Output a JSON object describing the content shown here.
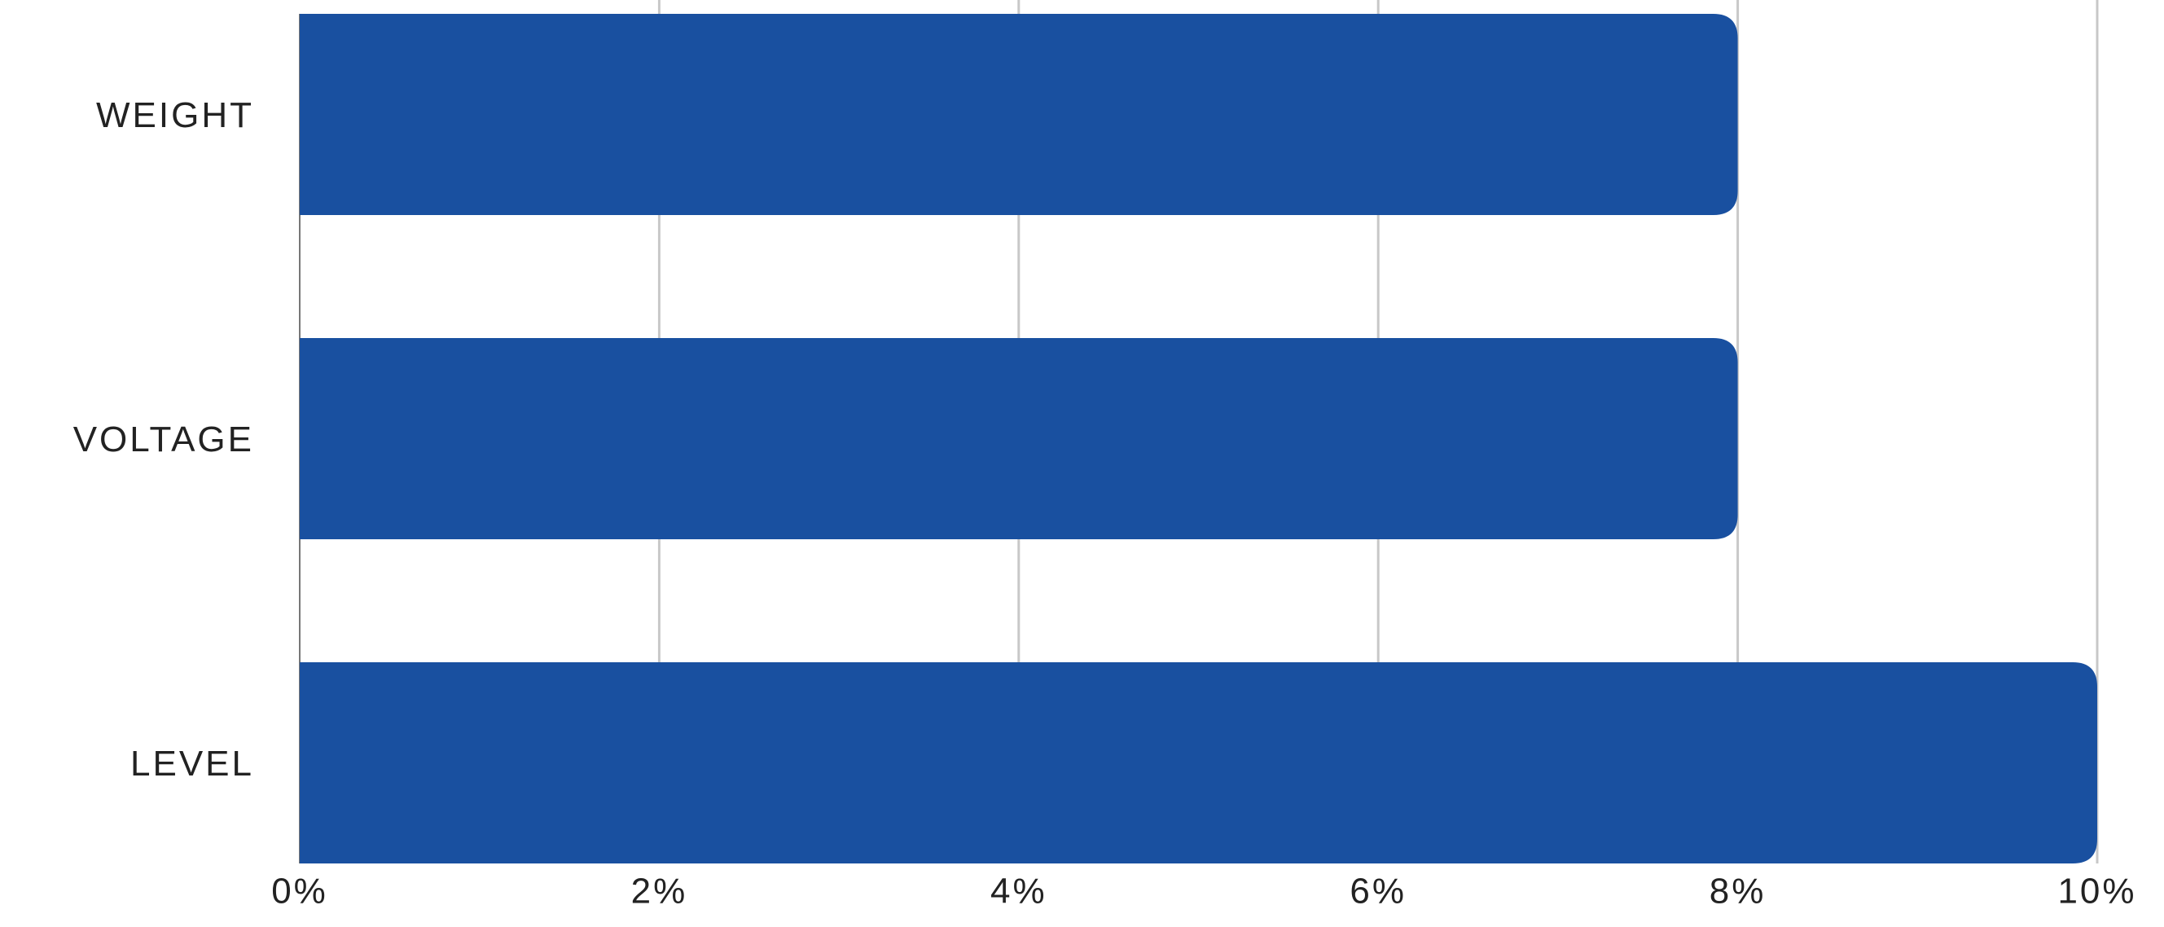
{
  "chart_data": {
    "type": "bar",
    "orientation": "horizontal",
    "categories": [
      "WEIGHT",
      "VOLTAGE",
      "LEVEL"
    ],
    "values": [
      8,
      8,
      10
    ],
    "color": "#1950a0",
    "xlim": [
      0,
      10
    ],
    "xticks": [
      {
        "value": 0,
        "label": "0%"
      },
      {
        "value": 2,
        "label": "2%"
      },
      {
        "value": 4,
        "label": "4%"
      },
      {
        "value": 6,
        "label": "6%"
      },
      {
        "value": 8,
        "label": "8%"
      },
      {
        "value": 10,
        "label": "10%"
      }
    ],
    "grid": true
  }
}
